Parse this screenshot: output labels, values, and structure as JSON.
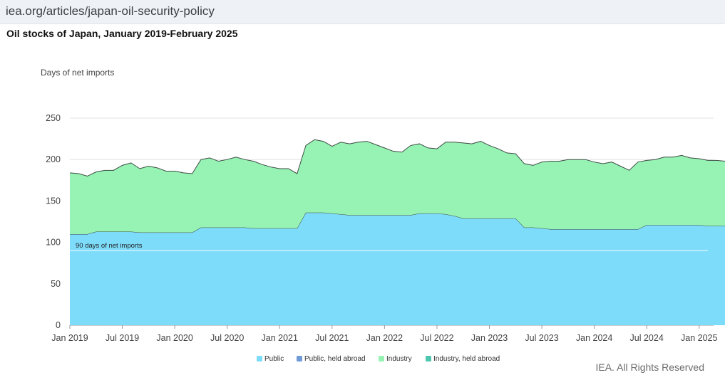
{
  "browser": {
    "url": "iea.org/articles/japan-oil-security-policy"
  },
  "footer": {
    "credit": "IEA. All Rights Reserved"
  },
  "chart_data": {
    "type": "area",
    "stacked": true,
    "title": "Oil stocks of Japan, January 2019-February 2025",
    "ylabel": "Days of net imports",
    "xlabel": "",
    "ylim": [
      0,
      250
    ],
    "yticks": [
      0,
      50,
      100,
      150,
      200,
      250
    ],
    "grid": true,
    "legend_position": "bottom",
    "reference_line": {
      "value": 90,
      "label": "90 days of net imports"
    },
    "x_tick_labels": [
      "Jan 2019",
      "Jul 2019",
      "Jan 2020",
      "Jul 2020",
      "Jan 2021",
      "Jul 2021",
      "Jan 2022",
      "Jul 2022",
      "Jan 2023",
      "Jul 2023",
      "Jan 2024",
      "Jul 2024",
      "Jan 2025"
    ],
    "x_start": "2019-01",
    "x_end": "2025-02",
    "colors": {
      "Public": "#7edcfb",
      "Public, held abroad": "#6f9bd8",
      "Industry": "#97f3b3",
      "Industry, held abroad": "#4fc7b0"
    },
    "series": [
      {
        "name": "Public",
        "values": [
          110,
          110,
          110,
          113,
          113,
          113,
          113,
          113,
          112,
          112,
          112,
          112,
          112,
          112,
          112,
          118,
          118,
          118,
          118,
          118,
          118,
          117,
          117,
          117,
          117,
          117,
          117,
          136,
          136,
          136,
          135,
          134,
          133,
          133,
          133,
          133,
          133,
          133,
          133,
          133,
          135,
          135,
          135,
          134,
          132,
          129,
          129,
          129,
          129,
          129,
          129,
          129,
          118,
          118,
          117,
          116,
          116,
          116,
          116,
          116,
          116,
          116,
          116,
          116,
          116,
          116,
          121,
          121,
          121,
          121,
          121,
          121,
          121,
          120,
          120,
          120,
          120,
          120,
          120,
          120
        ]
      },
      {
        "name": "Public, held abroad",
        "values": []
      },
      {
        "name": "Industry",
        "values": [
          74,
          73,
          70,
          72,
          74,
          74,
          80,
          83,
          77,
          80,
          78,
          74,
          74,
          72,
          71,
          82,
          84,
          80,
          82,
          85,
          82,
          81,
          77,
          74,
          72,
          72,
          66,
          81,
          88,
          86,
          81,
          87,
          86,
          88,
          89,
          85,
          81,
          77,
          76,
          84,
          84,
          79,
          78,
          87,
          89,
          91,
          90,
          93,
          88,
          84,
          79,
          78,
          77,
          75,
          80,
          82,
          82,
          84,
          84,
          84,
          81,
          79,
          81,
          76,
          71,
          81,
          78,
          79,
          82,
          82,
          84,
          81,
          80,
          79,
          79,
          78,
          77,
          77,
          75,
          75
        ]
      },
      {
        "name": "Industry, held abroad",
        "values": []
      }
    ]
  }
}
